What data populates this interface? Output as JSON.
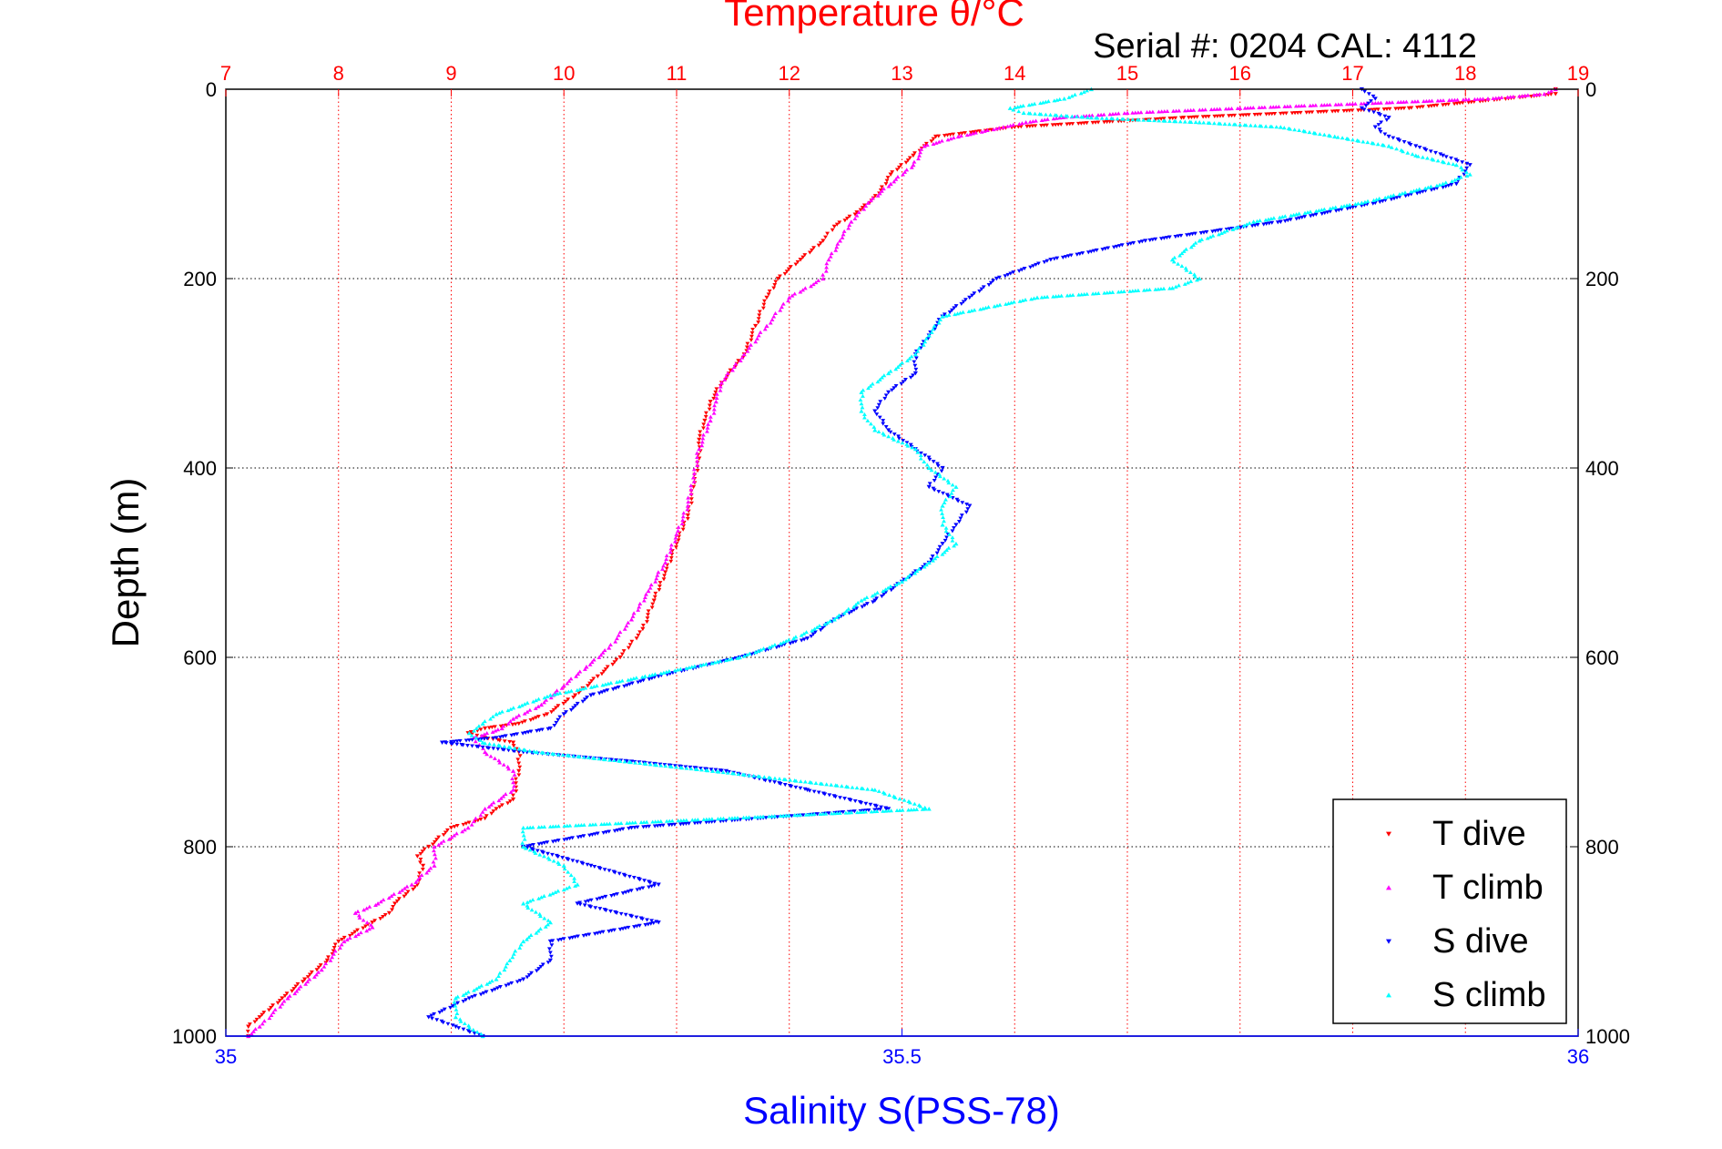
{
  "chart_data": {
    "type": "scatter",
    "title_temperature": "Temperature θ/°C",
    "serial_text": "Serial #: 0204  CAL: 4112",
    "ylabel": "Depth (m)",
    "xlabel_salinity": "Salinity S(PSS-78)",
    "depth_ticks": [
      "0",
      "200",
      "400",
      "600",
      "800",
      "1000"
    ],
    "depth_tick_values": [
      0,
      200,
      400,
      600,
      800,
      1000
    ],
    "temp_ticks": [
      "7",
      "8",
      "9",
      "10",
      "11",
      "12",
      "13",
      "14",
      "15",
      "16",
      "17",
      "18",
      "19"
    ],
    "temp_tick_values": [
      7,
      8,
      9,
      10,
      11,
      12,
      13,
      14,
      15,
      16,
      17,
      18,
      19
    ],
    "sal_ticks": [
      "35",
      "35.5",
      "36"
    ],
    "sal_tick_values": [
      35,
      35.5,
      36
    ],
    "ylim": [
      0,
      1000
    ],
    "temp_lim": [
      7,
      19
    ],
    "sal_lim": [
      35,
      36
    ],
    "y_reversed": true,
    "grid": true,
    "legend_position": "bottom-right",
    "colors": {
      "t_dive": "#ff0000",
      "t_climb": "#ff00ff",
      "s_dive": "#0000ff",
      "s_climb": "#00ffff",
      "temp_axis": "#ff0000",
      "sal_axis": "#0000ff",
      "depth_axis": "#000000"
    },
    "series": [
      {
        "name": "T dive",
        "axis": "temperature",
        "marker": "down-triangle",
        "depth": [
          0,
          5,
          20,
          30,
          40,
          50,
          60,
          70,
          90,
          110,
          130,
          145,
          160,
          180,
          200,
          220,
          250,
          280,
          310,
          330,
          350,
          370,
          390,
          420,
          450,
          480,
          510,
          540,
          570,
          600,
          620,
          640,
          660,
          670,
          675,
          680,
          685,
          690,
          700,
          720,
          750,
          760,
          770,
          780,
          800,
          810,
          820,
          840,
          860,
          870,
          880,
          900,
          920,
          940,
          960,
          980,
          990,
          1000
        ],
        "values": [
          18.8,
          18.8,
          17.5,
          15.5,
          14.0,
          13.3,
          13.2,
          13.1,
          12.9,
          12.8,
          12.6,
          12.4,
          12.3,
          12.1,
          11.9,
          11.8,
          11.7,
          11.6,
          11.4,
          11.3,
          11.25,
          11.2,
          11.2,
          11.15,
          11.1,
          11.0,
          10.9,
          10.8,
          10.7,
          10.5,
          10.3,
          10.1,
          9.85,
          9.6,
          9.3,
          9.15,
          9.3,
          9.55,
          9.6,
          9.6,
          9.55,
          9.4,
          9.3,
          9.0,
          8.8,
          8.7,
          8.75,
          8.7,
          8.5,
          8.45,
          8.3,
          8.0,
          7.9,
          7.7,
          7.5,
          7.3,
          7.2,
          7.2
        ]
      },
      {
        "name": "T climb",
        "axis": "temperature",
        "marker": "up-triangle",
        "depth": [
          0,
          5,
          10,
          20,
          25,
          30,
          35,
          40,
          50,
          60,
          80,
          100,
          120,
          140,
          160,
          180,
          200,
          220,
          250,
          280,
          310,
          330,
          350,
          380,
          410,
          440,
          470,
          500,
          530,
          560,
          590,
          610,
          630,
          650,
          665,
          675,
          685,
          700,
          720,
          740,
          760,
          780,
          800,
          820,
          840,
          860,
          870,
          885,
          900,
          930,
          960,
          990,
          1000
        ],
        "values": [
          18.8,
          18.7,
          18.2,
          16.0,
          15.0,
          14.4,
          14.1,
          13.9,
          13.5,
          13.2,
          13.1,
          12.9,
          12.7,
          12.55,
          12.45,
          12.35,
          12.3,
          12.0,
          11.8,
          11.6,
          11.4,
          11.35,
          11.3,
          11.2,
          11.15,
          11.1,
          11.0,
          10.9,
          10.75,
          10.6,
          10.4,
          10.2,
          10.0,
          9.8,
          9.55,
          9.45,
          9.2,
          9.3,
          9.55,
          9.55,
          9.3,
          9.15,
          8.85,
          8.85,
          8.65,
          8.35,
          8.15,
          8.3,
          8.05,
          7.85,
          7.55,
          7.3,
          7.2
        ]
      },
      {
        "name": "S dive",
        "axis": "salinity",
        "marker": "down-triangle",
        "depth": [
          0,
          10,
          20,
          30,
          40,
          50,
          60,
          70,
          80,
          100,
          120,
          140,
          160,
          180,
          200,
          220,
          240,
          260,
          280,
          300,
          320,
          340,
          360,
          380,
          400,
          420,
          440,
          460,
          480,
          500,
          520,
          540,
          560,
          580,
          600,
          620,
          640,
          660,
          675,
          685,
          690,
          700,
          710,
          720,
          740,
          760,
          780,
          800,
          820,
          840,
          860,
          880,
          900,
          920,
          940,
          960,
          980,
          990,
          1000
        ],
        "values": [
          35.84,
          35.85,
          35.84,
          35.86,
          35.85,
          35.86,
          35.88,
          35.9,
          35.92,
          35.91,
          35.85,
          35.78,
          35.68,
          35.61,
          35.57,
          35.55,
          35.53,
          35.52,
          35.51,
          35.51,
          35.49,
          35.48,
          35.49,
          35.51,
          35.53,
          35.52,
          35.55,
          35.54,
          35.53,
          35.52,
          35.5,
          35.48,
          35.45,
          35.43,
          35.38,
          35.32,
          35.27,
          35.25,
          35.24,
          35.2,
          35.16,
          35.22,
          35.3,
          35.37,
          35.43,
          35.49,
          35.3,
          35.22,
          35.27,
          35.32,
          35.26,
          35.32,
          35.24,
          35.24,
          35.22,
          35.18,
          35.15,
          35.17,
          35.19
        ]
      },
      {
        "name": "S climb",
        "axis": "salinity",
        "marker": "up-triangle",
        "depth": [
          0,
          10,
          20,
          25,
          30,
          35,
          40,
          50,
          60,
          70,
          80,
          90,
          100,
          120,
          140,
          160,
          180,
          200,
          210,
          220,
          240,
          260,
          280,
          300,
          320,
          340,
          360,
          380,
          400,
          420,
          440,
          460,
          480,
          500,
          520,
          540,
          560,
          580,
          600,
          620,
          640,
          660,
          670,
          680,
          690,
          700,
          720,
          740,
          760,
          780,
          800,
          820,
          840,
          860,
          880,
          900,
          920,
          940,
          960,
          980,
          1000
        ],
        "values": [
          35.64,
          35.62,
          35.58,
          35.59,
          35.64,
          35.72,
          35.78,
          35.82,
          35.86,
          35.88,
          35.91,
          35.92,
          35.9,
          35.84,
          35.76,
          35.72,
          35.7,
          35.72,
          35.7,
          35.6,
          35.53,
          35.52,
          35.51,
          35.49,
          35.47,
          35.47,
          35.48,
          35.51,
          35.52,
          35.54,
          35.53,
          35.53,
          35.54,
          35.52,
          35.5,
          35.47,
          35.45,
          35.42,
          35.38,
          35.31,
          35.24,
          35.2,
          35.19,
          35.18,
          35.19,
          35.23,
          35.36,
          35.48,
          35.52,
          35.22,
          35.22,
          35.25,
          35.26,
          35.22,
          35.24,
          35.22,
          35.21,
          35.2,
          35.17,
          35.17,
          35.19
        ]
      }
    ]
  }
}
